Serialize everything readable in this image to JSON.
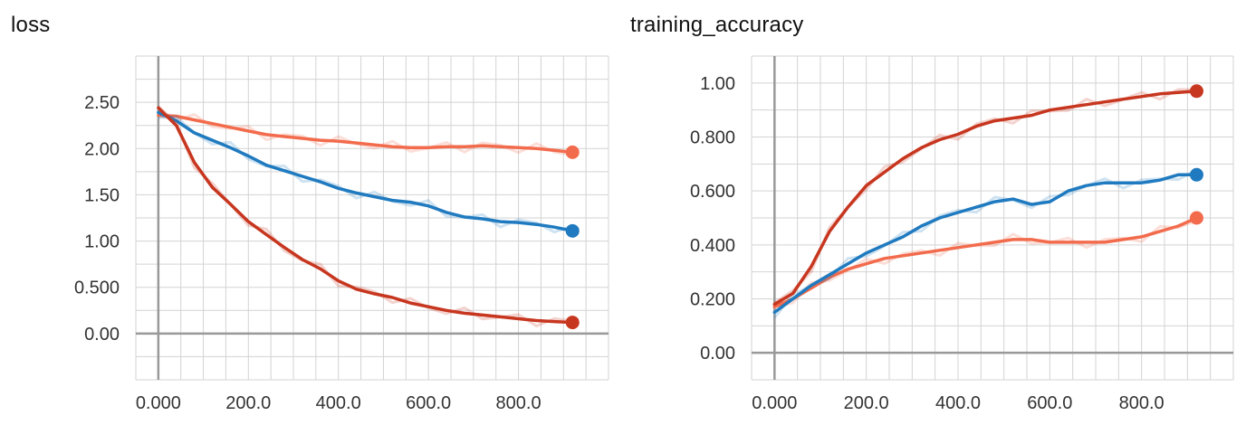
{
  "colors": {
    "dark_red": "#C7361F",
    "blue": "#1F7ABF",
    "orange": "#F26B4C",
    "grid": "#D3D3D3",
    "axis": "#999999"
  },
  "chart_data": [
    {
      "type": "line",
      "title": "loss",
      "xlabel": "",
      "ylabel": "",
      "xlim": [
        -50,
        1000
      ],
      "ylim": [
        -0.5,
        3.0
      ],
      "xticks": [
        "0.000",
        "200.0",
        "400.0",
        "600.0",
        "800.0"
      ],
      "yticks": [
        "2.50",
        "2.00",
        "1.50",
        "1.00",
        "0.500",
        "0.00"
      ],
      "grid": true,
      "legend": "none",
      "series": [
        {
          "color": "#F26B4C",
          "x": [
            0,
            40,
            80,
            120,
            160,
            200,
            240,
            280,
            320,
            360,
            400,
            440,
            480,
            520,
            560,
            600,
            640,
            680,
            720,
            760,
            800,
            840,
            880,
            920
          ],
          "y": [
            2.36,
            2.35,
            2.31,
            2.27,
            2.23,
            2.19,
            2.15,
            2.13,
            2.11,
            2.09,
            2.08,
            2.06,
            2.04,
            2.02,
            2.01,
            2.01,
            2.02,
            2.02,
            2.03,
            2.02,
            2.01,
            2.0,
            1.98,
            1.96
          ]
        },
        {
          "color": "#1F7ABF",
          "x": [
            0,
            40,
            80,
            120,
            160,
            200,
            240,
            280,
            320,
            360,
            400,
            440,
            480,
            520,
            560,
            600,
            640,
            680,
            720,
            760,
            800,
            840,
            880,
            920
          ],
          "y": [
            2.39,
            2.3,
            2.17,
            2.09,
            2.01,
            1.92,
            1.82,
            1.76,
            1.7,
            1.64,
            1.57,
            1.52,
            1.48,
            1.44,
            1.42,
            1.38,
            1.31,
            1.26,
            1.24,
            1.21,
            1.2,
            1.18,
            1.15,
            1.11
          ]
        },
        {
          "color": "#C7361F",
          "x": [
            0,
            40,
            80,
            120,
            160,
            200,
            240,
            280,
            320,
            360,
            400,
            440,
            480,
            520,
            560,
            600,
            640,
            680,
            720,
            760,
            800,
            840,
            880,
            920
          ],
          "y": [
            2.44,
            2.25,
            1.85,
            1.58,
            1.4,
            1.21,
            1.07,
            0.93,
            0.8,
            0.7,
            0.57,
            0.48,
            0.43,
            0.39,
            0.33,
            0.29,
            0.25,
            0.22,
            0.2,
            0.18,
            0.16,
            0.14,
            0.13,
            0.12
          ]
        }
      ]
    },
    {
      "type": "line",
      "title": "training_accuracy",
      "xlabel": "",
      "ylabel": "",
      "xlim": [
        -50,
        1000
      ],
      "ylim": [
        -0.1,
        1.1
      ],
      "xticks": [
        "0.000",
        "200.0",
        "400.0",
        "600.0",
        "800.0"
      ],
      "yticks": [
        "1.00",
        "0.800",
        "0.600",
        "0.400",
        "0.200",
        "0.00"
      ],
      "grid": true,
      "legend": "none",
      "series": [
        {
          "color": "#F26B4C",
          "x": [
            0,
            40,
            80,
            120,
            160,
            200,
            240,
            280,
            320,
            360,
            400,
            440,
            480,
            520,
            560,
            600,
            640,
            680,
            720,
            760,
            800,
            840,
            880,
            920
          ],
          "y": [
            0.17,
            0.2,
            0.24,
            0.28,
            0.31,
            0.33,
            0.35,
            0.36,
            0.37,
            0.38,
            0.39,
            0.4,
            0.41,
            0.42,
            0.42,
            0.41,
            0.41,
            0.41,
            0.41,
            0.42,
            0.43,
            0.45,
            0.47,
            0.5
          ]
        },
        {
          "color": "#1F7ABF",
          "x": [
            0,
            40,
            80,
            120,
            160,
            200,
            240,
            280,
            320,
            360,
            400,
            440,
            480,
            520,
            560,
            600,
            640,
            680,
            720,
            760,
            800,
            840,
            880,
            920
          ],
          "y": [
            0.15,
            0.2,
            0.25,
            0.29,
            0.33,
            0.37,
            0.4,
            0.43,
            0.47,
            0.5,
            0.52,
            0.54,
            0.56,
            0.57,
            0.55,
            0.56,
            0.6,
            0.62,
            0.63,
            0.63,
            0.63,
            0.64,
            0.66,
            0.66
          ]
        },
        {
          "color": "#C7361F",
          "x": [
            0,
            40,
            80,
            120,
            160,
            200,
            240,
            280,
            320,
            360,
            400,
            440,
            480,
            520,
            560,
            600,
            640,
            680,
            720,
            760,
            800,
            840,
            880,
            920
          ],
          "y": [
            0.18,
            0.22,
            0.32,
            0.45,
            0.54,
            0.62,
            0.67,
            0.72,
            0.76,
            0.79,
            0.81,
            0.84,
            0.86,
            0.87,
            0.88,
            0.9,
            0.91,
            0.92,
            0.93,
            0.94,
            0.95,
            0.96,
            0.965,
            0.97
          ]
        }
      ]
    }
  ]
}
